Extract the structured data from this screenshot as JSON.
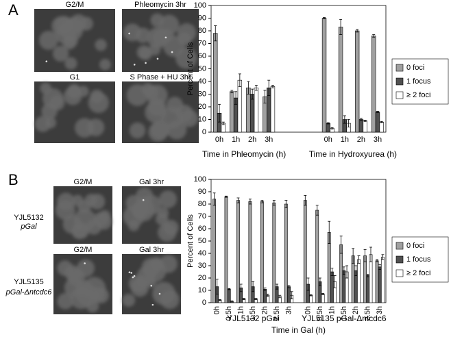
{
  "panel_a": {
    "label": "A",
    "images": [
      "G2/M",
      "Phleomycin 3hr",
      "G1",
      "S Phase + HU 3hr"
    ]
  },
  "panel_b": {
    "label": "B",
    "images": [
      "G2/M",
      "Gal 3hr",
      "G2/M",
      "Gal 3hr"
    ],
    "strains": [
      {
        "name": "YJL5132",
        "genotype": "pGal"
      },
      {
        "name": "YJL5135",
        "genotype": "pGal-Δntcdc6"
      }
    ]
  },
  "chart_data": [
    {
      "type": "grouped-bar",
      "y_label": "Percent of Cells",
      "ylim": [
        0,
        100
      ],
      "yticks": [
        0,
        10,
        20,
        30,
        40,
        50,
        60,
        70,
        80,
        90,
        100
      ],
      "grid": false,
      "legend": "right",
      "rotated_labels": false,
      "series": [
        {
          "name": "0 foci",
          "color": "#a0a0a0"
        },
        {
          "name": "1 focus",
          "color": "#505050"
        },
        {
          "name": "≥ 2 foci",
          "color": "#ffffff"
        }
      ],
      "groups": [
        {
          "label": "Time in Phleomycin (h)",
          "categories": [
            "0h",
            "1h",
            "2h",
            "3h"
          ],
          "series": [
            {
              "values": [
                78,
                32,
                35,
                28
              ],
              "errors": [
                6,
                1,
                5,
                5
              ]
            },
            {
              "values": [
                15,
                27,
                30,
                35
              ],
              "errors": [
                7,
                5,
                4,
                6
              ]
            },
            {
              "values": [
                7,
                41,
                35,
                36
              ],
              "errors": [
                1,
                5,
                2,
                1
              ]
            }
          ]
        },
        {
          "label": "Time in Hydroxyurea (h)",
          "categories": [
            "0h",
            "1h",
            "2h",
            "3h"
          ],
          "series": [
            {
              "values": [
                90,
                83,
                80,
                76
              ],
              "errors": [
                0.5,
                6,
                1,
                1
              ]
            },
            {
              "values": [
                7,
                10,
                10,
                16
              ],
              "errors": [
                0.5,
                3,
                1,
                0.5
              ]
            },
            {
              "values": [
                3,
                7,
                9,
                8
              ],
              "errors": [
                0.5,
                3,
                0.5,
                0.5
              ]
            }
          ]
        }
      ]
    },
    {
      "type": "grouped-bar",
      "y_label": "Percent of Cells",
      "x_label": "Time in Gal (h)",
      "ylim": [
        0,
        100
      ],
      "yticks": [
        0,
        10,
        20,
        30,
        40,
        50,
        60,
        70,
        80,
        90,
        100
      ],
      "grid": false,
      "legend": "right",
      "rotated_labels": true,
      "series": [
        {
          "name": "0 foci",
          "color": "#a0a0a0"
        },
        {
          "name": "1 focus",
          "color": "#505050"
        },
        {
          "name": "≥ 2 foci",
          "color": "#ffffff"
        }
      ],
      "groups": [
        {
          "label": "YJL5132 pGal",
          "categories": [
            "0h",
            "0.5h",
            "1h",
            "1.5h",
            "2h",
            "2.5h",
            "3h"
          ],
          "series": [
            {
              "values": [
                84,
                86,
                83,
                82,
                82,
                81,
                80
              ],
              "errors": [
                5,
                0.5,
                2,
                2,
                1,
                2,
                3
              ]
            },
            {
              "values": [
                13,
                11,
                12,
                13,
                11,
                13,
                13
              ],
              "errors": [
                6,
                0.5,
                3,
                4,
                1,
                2,
                1
              ]
            },
            {
              "values": [
                2,
                1,
                3,
                3,
                6,
                5,
                6
              ],
              "errors": [
                0.5,
                0.5,
                0.5,
                0.5,
                1,
                1,
                3
              ]
            }
          ]
        },
        {
          "label": "YJL5135 pGal-Δntcdc6",
          "categories": [
            "0h",
            "0.5h",
            "1h",
            "1.5h",
            "2h",
            "2.5h",
            "3h"
          ],
          "series": [
            {
              "values": [
                83,
                75,
                57,
                47,
                38,
                38,
                34
              ],
              "errors": [
                4,
                4,
                9,
                7,
                6,
                5,
                1
              ]
            },
            {
              "values": [
                15,
                17,
                25,
                26,
                26,
                22,
                29
              ],
              "errors": [
                5,
                3,
                3,
                3,
                4,
                1,
                2
              ]
            },
            {
              "values": [
                6,
                7,
                17,
                25,
                35,
                39,
                37
              ],
              "errors": [
                0.5,
                0.5,
                5,
                5,
                3,
                6,
                2
              ]
            }
          ]
        }
      ]
    }
  ]
}
